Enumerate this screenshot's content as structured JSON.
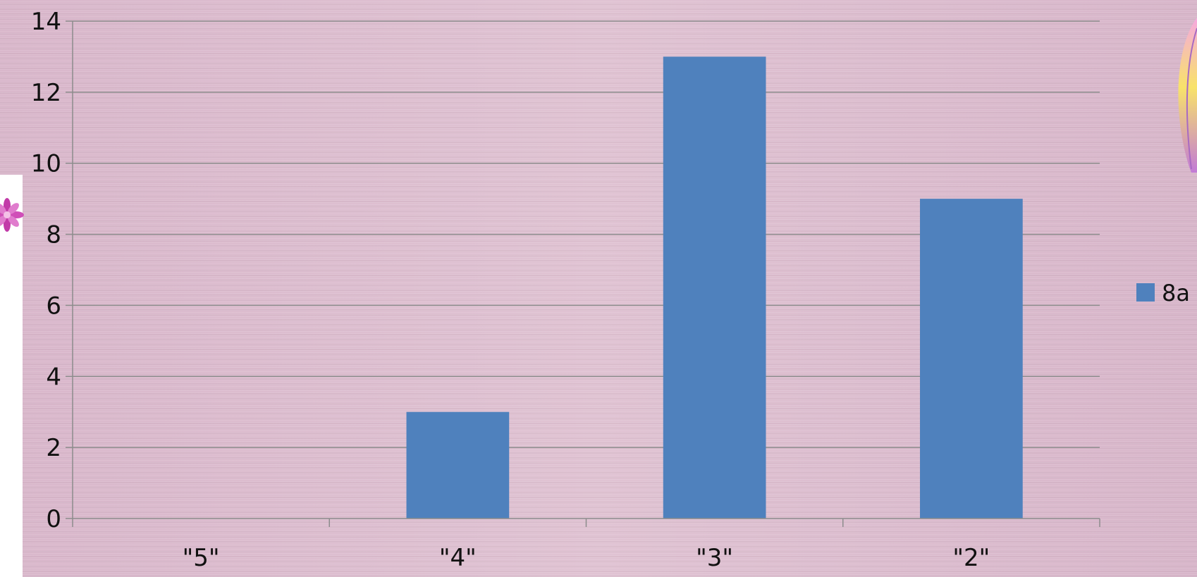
{
  "chart_data": {
    "type": "bar",
    "categories": [
      "\"5\"",
      "\"4\"",
      "\"3\"",
      "\"2\""
    ],
    "series": [
      {
        "name": "8a",
        "values": [
          0,
          3,
          13,
          9
        ],
        "color": "#4f81bd"
      }
    ],
    "title": "",
    "xlabel": "",
    "ylabel": "",
    "ylim": [
      0,
      14
    ],
    "yticks": [
      0,
      2,
      4,
      6,
      8,
      10,
      12,
      14
    ],
    "grid": true,
    "legend_position": "right"
  },
  "colors": {
    "bar": "#4f81bd",
    "gridline": "#8c8c8c",
    "axis": "#8c8c8c"
  },
  "decorations": [
    "flower-icon",
    "feather-icon"
  ]
}
